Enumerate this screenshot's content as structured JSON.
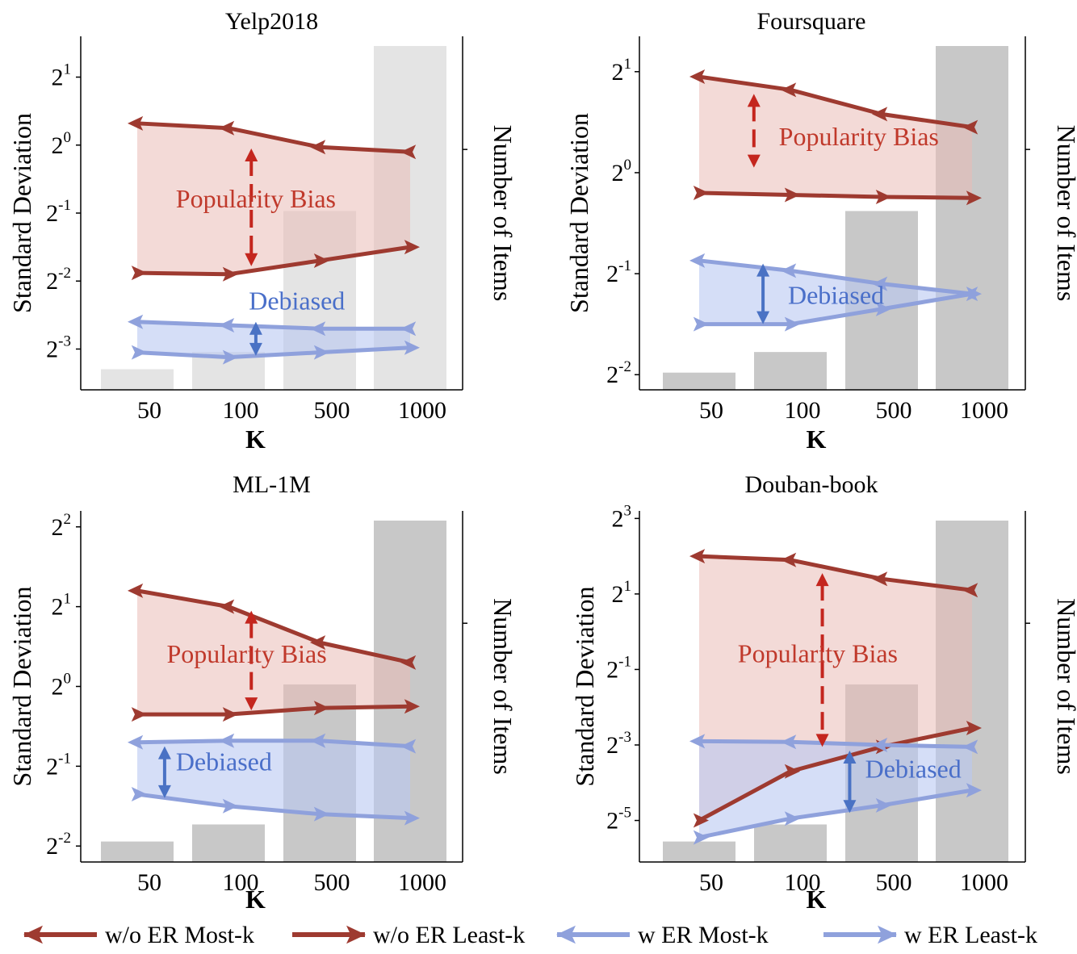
{
  "figure": {
    "legend": [
      {
        "label": "w/o ER Most-k",
        "color": "#9e3a30",
        "marker": "left"
      },
      {
        "label": "w/o ER Least-k",
        "color": "#9e3a30",
        "marker": "right"
      },
      {
        "label": "w  ER Most-k",
        "color": "#8fa1dc",
        "marker": "left"
      },
      {
        "label": "w  ER Least-k",
        "color": "#8fa1dc",
        "marker": "right"
      }
    ],
    "colors": {
      "popularity_line": "#9e3a30",
      "popularity_fill": "#e9bcb6",
      "popularity_text": "#c0392b",
      "debiased_line": "#8fa1dc",
      "debiased_fill": "#b9c8f1",
      "debiased_text": "#4a6fc9",
      "bias_arrow": "#c4261e",
      "debias_arrow": "#4a72c4",
      "bars": "#c8c8c8",
      "bars_light": "#e4e4e4"
    },
    "right_axis_label": "Number of Items"
  },
  "chart_data": [
    {
      "type": "line",
      "title": "Yelp2018",
      "xlabel": "K",
      "ylabel": "Standard Deviation",
      "y2label": "Number of Items",
      "y_scale": "log2",
      "categories": [
        "50",
        "100",
        "500",
        "1000"
      ],
      "ylim": [
        -3.6,
        1.6
      ],
      "yticks": [
        {
          "base": "2",
          "exp": "1",
          "v": 1
        },
        {
          "base": "2",
          "exp": "0",
          "v": 0
        },
        {
          "base": "2",
          "exp": "-1",
          "v": -1
        },
        {
          "base": "2",
          "exp": "-2",
          "v": -2
        },
        {
          "base": "2",
          "exp": "-3",
          "v": -3
        }
      ],
      "bars": [
        0.06,
        0.11,
        0.52,
        1.0
      ],
      "bar_shade": "light",
      "series": [
        {
          "name": "w/o ER Most-k",
          "values": [
            0.32,
            0.25,
            -0.03,
            -0.1
          ]
        },
        {
          "name": "w/o ER Least-k",
          "values": [
            -1.88,
            -1.9,
            -1.7,
            -1.5
          ]
        },
        {
          "name": "w  ER Most-k",
          "values": [
            -2.6,
            -2.65,
            -2.7,
            -2.7
          ]
        },
        {
          "name": "w  ER Least-k",
          "values": [
            -3.05,
            -3.12,
            -3.05,
            -2.98
          ]
        }
      ],
      "annotations": [
        {
          "text": "Popularity Bias",
          "kind": "bias",
          "x": 1.3,
          "y": -0.8
        },
        {
          "text": "Debiased",
          "kind": "debiased",
          "x": 1.75,
          "y": -2.3
        }
      ],
      "bias_arrow": {
        "x": 1.25,
        "y_top": -0.05,
        "y_bottom": -1.78
      },
      "debias_arrow": {
        "x": 1.3,
        "y_top": -2.6,
        "y_bottom": -3.1
      }
    },
    {
      "type": "line",
      "title": "Foursquare",
      "xlabel": "K",
      "ylabel": "Standard Deviation",
      "y2label": "Number of Items",
      "y_scale": "log2",
      "categories": [
        "50",
        "100",
        "500",
        "1000"
      ],
      "ylim": [
        -2.15,
        1.35
      ],
      "yticks": [
        {
          "base": "2",
          "exp": "1",
          "v": 1
        },
        {
          "base": "2",
          "exp": "0",
          "v": 0
        },
        {
          "base": "2",
          "exp": "-1",
          "v": -1
        },
        {
          "base": "2",
          "exp": "-2",
          "v": -2
        }
      ],
      "bars": [
        0.05,
        0.11,
        0.52,
        1.0
      ],
      "bar_shade": "dark",
      "series": [
        {
          "name": "w/o ER Most-k",
          "values": [
            0.95,
            0.82,
            0.58,
            0.45
          ]
        },
        {
          "name": "w/o ER Least-k",
          "values": [
            -0.2,
            -0.22,
            -0.24,
            -0.25
          ]
        },
        {
          "name": "w  ER Most-k",
          "values": [
            -0.87,
            -0.97,
            -1.1,
            -1.2
          ]
        },
        {
          "name": "w  ER Least-k",
          "values": [
            -1.5,
            -1.5,
            -1.35,
            -1.2
          ]
        }
      ],
      "annotations": [
        {
          "text": "Popularity Bias",
          "kind": "bias",
          "x": 1.75,
          "y": 0.35
        },
        {
          "text": "Debiased",
          "kind": "debiased",
          "x": 1.5,
          "y": -1.22
        }
      ],
      "bias_arrow": {
        "x": 0.6,
        "y_top": 0.78,
        "y_bottom": 0.05
      },
      "debias_arrow": {
        "x": 0.7,
        "y_top": -0.9,
        "y_bottom": -1.5
      }
    },
    {
      "type": "line",
      "title": "ML-1M",
      "xlabel": "K",
      "ylabel": "Standard Deviation",
      "y2label": "Number of Items",
      "y_scale": "log2",
      "categories": [
        "50",
        "100",
        "500",
        "1000"
      ],
      "ylim": [
        -2.2,
        2.2
      ],
      "yticks": [
        {
          "base": "2",
          "exp": "2",
          "v": 2
        },
        {
          "base": "2",
          "exp": "1",
          "v": 1
        },
        {
          "base": "2",
          "exp": "0",
          "v": 0
        },
        {
          "base": "2",
          "exp": "-1",
          "v": -1
        },
        {
          "base": "2",
          "exp": "-2",
          "v": -2
        }
      ],
      "bars": [
        0.06,
        0.11,
        0.52,
        1.0
      ],
      "bar_shade": "dark",
      "series": [
        {
          "name": "w/o ER Most-k",
          "values": [
            1.2,
            1.0,
            0.55,
            0.3
          ]
        },
        {
          "name": "w/o ER Least-k",
          "values": [
            -0.35,
            -0.35,
            -0.27,
            -0.25
          ]
        },
        {
          "name": "w  ER Most-k",
          "values": [
            -0.7,
            -0.68,
            -0.68,
            -0.75
          ]
        },
        {
          "name": "w  ER Least-k",
          "values": [
            -1.35,
            -1.5,
            -1.6,
            -1.65
          ]
        }
      ],
      "annotations": [
        {
          "text": "Popularity Bias",
          "kind": "bias",
          "x": 1.2,
          "y": 0.4
        },
        {
          "text": "Debiased",
          "kind": "debiased",
          "x": 0.95,
          "y": -0.95
        }
      ],
      "bias_arrow": {
        "x": 1.25,
        "y_top": 0.95,
        "y_bottom": -0.3
      },
      "debias_arrow": {
        "x": 0.3,
        "y_top": -0.75,
        "y_bottom": -1.4
      }
    },
    {
      "type": "line",
      "title": "Douban-book",
      "xlabel": "K",
      "ylabel": "Standard Deviation",
      "y2label": "Number of Items",
      "y_scale": "log2",
      "categories": [
        "50",
        "100",
        "500",
        "1000"
      ],
      "ylim": [
        -6.1,
        3.2
      ],
      "yticks": [
        {
          "base": "2",
          "exp": "3",
          "v": 3
        },
        {
          "base": "2",
          "exp": "1",
          "v": 1
        },
        {
          "base": "2",
          "exp": "-1",
          "v": -1
        },
        {
          "base": "2",
          "exp": "-3",
          "v": -3
        },
        {
          "base": "2",
          "exp": "-5",
          "v": -5
        }
      ],
      "bars": [
        0.06,
        0.11,
        0.52,
        1.0
      ],
      "bar_shade": "dark",
      "series": [
        {
          "name": "w/o ER Most-k",
          "values": [
            2.0,
            1.9,
            1.4,
            1.1
          ]
        },
        {
          "name": "w/o ER Least-k",
          "values": [
            -5.0,
            -3.7,
            -3.05,
            -2.55
          ]
        },
        {
          "name": "w  ER Most-k",
          "values": [
            -2.9,
            -2.92,
            -3.0,
            -3.05
          ]
        },
        {
          "name": "w  ER Least-k",
          "values": [
            -5.45,
            -4.95,
            -4.6,
            -4.2
          ]
        }
      ],
      "annotations": [
        {
          "text": "Popularity Bias",
          "kind": "bias",
          "x": 1.3,
          "y": -0.6
        },
        {
          "text": "Debiased",
          "kind": "debiased",
          "x": 2.35,
          "y": -3.65
        }
      ],
      "bias_arrow": {
        "x": 1.35,
        "y_top": 1.55,
        "y_bottom": -3.05
      },
      "debias_arrow": {
        "x": 1.65,
        "y_top": -3.15,
        "y_bottom": -4.8
      }
    }
  ]
}
